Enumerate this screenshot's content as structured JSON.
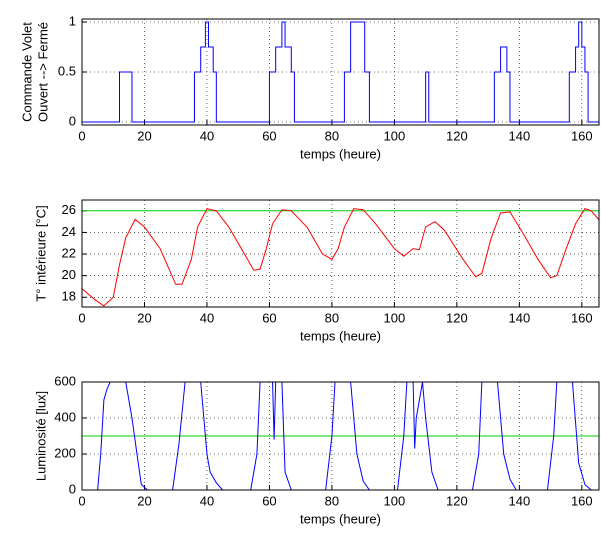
{
  "chart_data": [
    {
      "type": "line",
      "color": "#0000ff",
      "ylabel": [
        "Commande Volet",
        "Ouvert --> Fermé"
      ],
      "xlabel": "temps (heure)",
      "x": [
        0,
        12,
        12,
        16,
        16,
        36,
        36,
        38,
        38,
        39.5,
        39.5,
        40.5,
        40.5,
        42,
        42,
        43,
        43,
        60,
        60,
        62,
        62,
        64,
        64,
        65,
        65,
        67,
        67,
        68,
        68,
        84,
        84,
        86,
        86,
        90.5,
        90.5,
        92,
        92,
        110,
        110,
        111,
        111,
        132,
        132,
        134,
        134,
        136,
        136,
        137,
        137,
        156,
        156,
        158,
        158,
        159,
        159,
        160,
        160,
        161,
        161,
        162,
        162,
        166
      ],
      "values": [
        0,
        0,
        0.5,
        0.5,
        0,
        0,
        0.5,
        0.5,
        0.75,
        0.75,
        1,
        1,
        0.75,
        0.75,
        0.5,
        0.5,
        0,
        0,
        0.5,
        0.5,
        0.75,
        0.75,
        1,
        1,
        0.75,
        0.75,
        0.5,
        0.5,
        0,
        0,
        0.5,
        0.5,
        1,
        1,
        0.5,
        0.5,
        0,
        0,
        0.5,
        0.5,
        0,
        0,
        0.5,
        0.5,
        0.75,
        0.75,
        0.5,
        0.5,
        0,
        0,
        0.5,
        0.5,
        0.75,
        0.75,
        1,
        1,
        0.75,
        0.75,
        0.5,
        0.5,
        0,
        0
      ],
      "xlim": [
        0,
        165.5
      ],
      "xticks": [
        0,
        20,
        40,
        60,
        80,
        100,
        120,
        140,
        160
      ],
      "ylim": [
        -0.03,
        1.03
      ],
      "yticks": [
        0,
        0.5,
        1
      ],
      "grid": true
    },
    {
      "type": "line",
      "color": "#ff0000",
      "ylabel": [
        "T° intérieure [°C]"
      ],
      "xlabel": "temps (heure)",
      "x": [
        0,
        4,
        7,
        10,
        12,
        14,
        17,
        20,
        25,
        30,
        32,
        35,
        37,
        40,
        43,
        47,
        52,
        55,
        57,
        59,
        61,
        64,
        67,
        72,
        77,
        80,
        82,
        84,
        87,
        90,
        94,
        100,
        103,
        106,
        108,
        110,
        113,
        116,
        122,
        126,
        128,
        131,
        134,
        137,
        141,
        146,
        150,
        152,
        155,
        158,
        161,
        163,
        166
      ],
      "values": [
        18.8,
        17.8,
        17.2,
        18,
        21,
        23.5,
        25.2,
        24.5,
        22.5,
        19.2,
        19.2,
        21.5,
        24.5,
        26.2,
        26,
        24.5,
        22,
        20.5,
        20.6,
        22.5,
        24.8,
        26.1,
        26,
        24.5,
        22,
        21.5,
        22.5,
        24.5,
        26.2,
        26.1,
        24.8,
        22.5,
        21.8,
        22.5,
        22.4,
        24.5,
        25,
        24.2,
        21.5,
        19.9,
        20.2,
        23.5,
        25.8,
        25.9,
        24,
        21.5,
        19.8,
        20,
        22.5,
        24.8,
        26.2,
        26,
        25
      ],
      "hline": 26,
      "hline_color": "#00d000",
      "xlim": [
        0,
        165.5
      ],
      "xticks": [
        0,
        20,
        40,
        60,
        80,
        100,
        120,
        140,
        160
      ],
      "ylim": [
        17.1,
        27
      ],
      "yticks": [
        18,
        20,
        22,
        24,
        26
      ],
      "grid": true
    },
    {
      "type": "line",
      "color": "#0000ff",
      "ylabel": [
        "Luminosité [lux]"
      ],
      "xlabel": "temps (heure)",
      "x": [
        0,
        5,
        6,
        7,
        8,
        9,
        14,
        16,
        18,
        19,
        21,
        29,
        31,
        33,
        38,
        40,
        41,
        43,
        45,
        54,
        56,
        57,
        61,
        61.5,
        62,
        64,
        65,
        67,
        78,
        80,
        81,
        86,
        88,
        90,
        92,
        101,
        103,
        104,
        106,
        106.5,
        107,
        109,
        110,
        112,
        114,
        125,
        127,
        128,
        133,
        135,
        137,
        139,
        149,
        151,
        152,
        157,
        159,
        161,
        163,
        166
      ],
      "values": [
        0,
        0,
        200,
        500,
        560,
        600,
        600,
        400,
        150,
        30,
        0,
        0,
        250,
        600,
        600,
        200,
        100,
        40,
        0,
        0,
        200,
        600,
        600,
        280,
        600,
        600,
        100,
        0,
        0,
        300,
        600,
        600,
        200,
        50,
        0,
        0,
        300,
        600,
        600,
        230,
        400,
        600,
        400,
        100,
        0,
        0,
        200,
        600,
        600,
        200,
        60,
        0,
        0,
        300,
        600,
        600,
        150,
        30,
        0,
        0
      ],
      "hline": 300,
      "hline_color": "#00d000",
      "xlim": [
        0,
        165.5
      ],
      "xticks": [
        0,
        20,
        40,
        60,
        80,
        100,
        120,
        140,
        160
      ],
      "ylim": [
        0,
        600
      ],
      "yticks": [
        0,
        200,
        400,
        600
      ],
      "grid": true
    }
  ]
}
